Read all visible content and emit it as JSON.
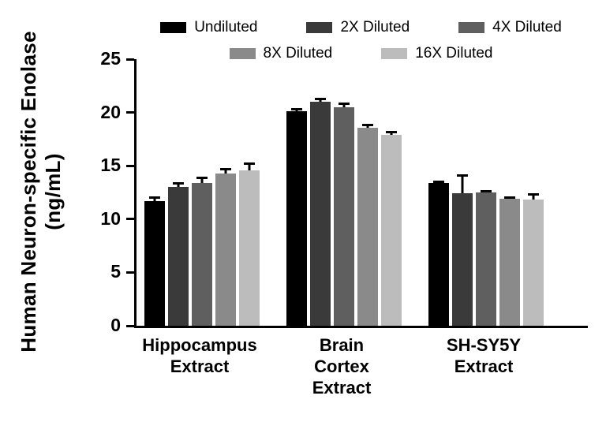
{
  "figure": {
    "ylabel_line1": "Human Neuron-specific Enolase",
    "ylabel_line2": "(ng/mL)"
  },
  "chart_data": {
    "type": "bar",
    "title": "",
    "xlabel": "",
    "ylabel": "Human Neuron-specific Enolase (ng/mL)",
    "ylim": [
      0,
      25
    ],
    "yticks": [
      0,
      5,
      10,
      15,
      20,
      25
    ],
    "grid": false,
    "legend_position": "top",
    "error_bars": "upper SD caps",
    "categories": [
      "Hippocampus Extract",
      "Brain Cortex Extract",
      "SH-SY5Y Extract"
    ],
    "category_label_lines": [
      [
        "Hippocampus",
        "Extract"
      ],
      [
        "Brain",
        "Cortex",
        "Extract"
      ],
      [
        "SH-SY5Y",
        "Extract"
      ]
    ],
    "series": [
      {
        "name": "Undiluted",
        "color": "#000000",
        "values": [
          11.7,
          20.1,
          13.4
        ],
        "errors": [
          0.4,
          0.3,
          0.2
        ]
      },
      {
        "name": "2X Diluted",
        "color": "#3a3a3a",
        "values": [
          13.0,
          21.0,
          12.4
        ],
        "errors": [
          0.5,
          0.4,
          1.8
        ]
      },
      {
        "name": "4X Diluted",
        "color": "#5f5f5f",
        "values": [
          13.4,
          20.5,
          12.5
        ],
        "errors": [
          0.6,
          0.4,
          0.2
        ]
      },
      {
        "name": "8X Diluted",
        "color": "#8a8a8a",
        "values": [
          14.3,
          18.6,
          11.9
        ],
        "errors": [
          0.5,
          0.3,
          0.2
        ]
      },
      {
        "name": "16X Diluted",
        "color": "#bcbcbc",
        "values": [
          14.6,
          17.9,
          11.8
        ],
        "errors": [
          0.7,
          0.4,
          0.6
        ]
      }
    ],
    "axis_color": "#000000",
    "error_bar_color": "#000000"
  }
}
